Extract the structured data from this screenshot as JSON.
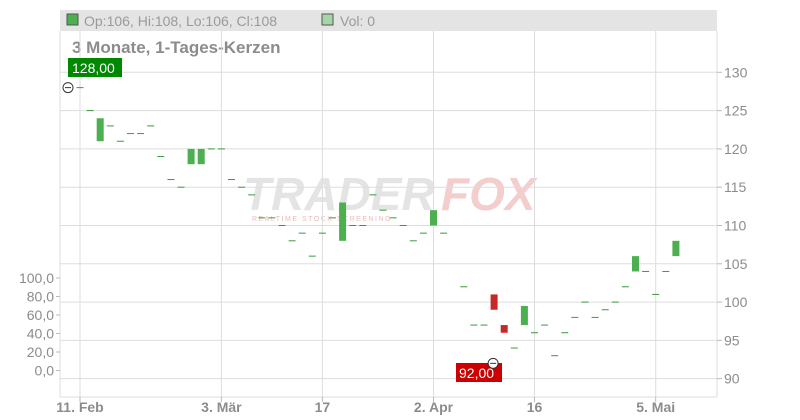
{
  "legend": {
    "ohlc_text": "Op:106, Hi:108, Lo:106, Cl:108",
    "volume_text": "Vol: 0",
    "ohlc_swatch_color": "#4caf50",
    "volume_swatch_color": "#a5d6a7"
  },
  "title": "3 Monate, 1-Tages-Kerzen",
  "watermark": {
    "part1": "TRADER",
    "part2": "FOX",
    "tagline": "REALTIME STOCK SCREENING"
  },
  "badges": {
    "high": {
      "text": "128,00",
      "color": "#008800"
    },
    "low": {
      "text": "92,00",
      "color": "#cc0000"
    }
  },
  "chart_data": {
    "type": "candlestick",
    "title": "3 Monate, 1-Tages-Kerzen",
    "price_axis": {
      "range": [
        88,
        135
      ],
      "ticks": [
        130,
        125,
        120,
        115,
        110,
        105,
        100,
        95,
        90
      ],
      "position": "right"
    },
    "volume_axis": {
      "range": [
        0,
        120
      ],
      "ticks": [
        "100,0",
        "80,0",
        "60,0",
        "40,0",
        "20,0",
        "0,0"
      ],
      "position": "left"
    },
    "x_ticks": [
      {
        "label": "11. Feb",
        "index": 0
      },
      {
        "label": "3. Mär",
        "index": 14
      },
      {
        "label": "17",
        "index": 24
      },
      {
        "label": "2. Apr",
        "index": 35
      },
      {
        "label": "16",
        "index": 45
      },
      {
        "label": "5. Mai",
        "index": 57
      }
    ],
    "up_color": "#4caf50",
    "down_color": "#c62828",
    "flat_color": "#3a9a3a",
    "high_marker": {
      "index": 0,
      "value": 128
    },
    "low_marker": {
      "index": 41,
      "value": 92
    },
    "candles": [
      {
        "o": 128,
        "c": 128
      },
      {
        "o": 125,
        "c": 125
      },
      {
        "o": 121,
        "c": 124
      },
      {
        "o": 123,
        "c": 123
      },
      {
        "o": 121,
        "c": 121
      },
      {
        "o": 122,
        "c": 122
      },
      {
        "o": 122,
        "c": 122
      },
      {
        "o": 123,
        "c": 123
      },
      {
        "o": 119,
        "c": 119
      },
      {
        "o": 116,
        "c": 116
      },
      {
        "o": 115,
        "c": 115
      },
      {
        "o": 118,
        "c": 120
      },
      {
        "o": 118,
        "c": 120
      },
      {
        "o": 120,
        "c": 120
      },
      {
        "o": 120,
        "c": 120
      },
      {
        "o": 116,
        "c": 116
      },
      {
        "o": 115,
        "c": 115
      },
      {
        "o": 114,
        "c": 114
      },
      {
        "o": 111,
        "c": 111
      },
      {
        "o": 111,
        "c": 111
      },
      {
        "o": 110,
        "c": 110
      },
      {
        "o": 108,
        "c": 108
      },
      {
        "o": 109,
        "c": 109
      },
      {
        "o": 106,
        "c": 106
      },
      {
        "o": 109,
        "c": 109
      },
      {
        "o": 111,
        "c": 111
      },
      {
        "o": 108,
        "c": 113
      },
      {
        "o": 110,
        "c": 110
      },
      {
        "o": 110,
        "c": 110
      },
      {
        "o": 114,
        "c": 114
      },
      {
        "o": 112,
        "c": 112
      },
      {
        "o": 111,
        "c": 111
      },
      {
        "o": 110,
        "c": 110
      },
      {
        "o": 108,
        "c": 108
      },
      {
        "o": 109,
        "c": 109
      },
      {
        "o": 110,
        "c": 112
      },
      {
        "o": 109,
        "c": 109
      },
      null,
      {
        "o": 102,
        "c": 102
      },
      {
        "o": 97,
        "c": 97
      },
      {
        "o": 97,
        "c": 97
      },
      {
        "o": 101,
        "c": 99
      },
      {
        "o": 97,
        "c": 96
      },
      {
        "o": 94,
        "c": 94
      },
      {
        "o": 97,
        "c": 99.5
      },
      {
        "o": 96,
        "c": 96
      },
      {
        "o": 97,
        "c": 97
      },
      {
        "o": 93,
        "c": 93
      },
      {
        "o": 96,
        "c": 96
      },
      {
        "o": 98,
        "c": 98
      },
      {
        "o": 100,
        "c": 100
      },
      {
        "o": 98,
        "c": 98
      },
      {
        "o": 99,
        "c": 99
      },
      {
        "o": 100,
        "c": 100
      },
      {
        "o": 102,
        "c": 102
      },
      {
        "o": 104,
        "c": 106
      },
      {
        "o": 104,
        "c": 104
      },
      {
        "o": 101,
        "c": 101
      },
      {
        "o": 104,
        "c": 104
      },
      {
        "o": 106,
        "c": 108
      }
    ],
    "volume": [
      0,
      0,
      0,
      0,
      0,
      0,
      0,
      0,
      0,
      0,
      0,
      0,
      0,
      0,
      0,
      0,
      0,
      0,
      0,
      0,
      0,
      0,
      0,
      0,
      0,
      0,
      0,
      0,
      0,
      0,
      0,
      0,
      0,
      0,
      0,
      0,
      0,
      0,
      0,
      0,
      0,
      0,
      0,
      0,
      0,
      0,
      0,
      0,
      0,
      0,
      0,
      0,
      0,
      0,
      0,
      0,
      0,
      0,
      0,
      0
    ]
  }
}
